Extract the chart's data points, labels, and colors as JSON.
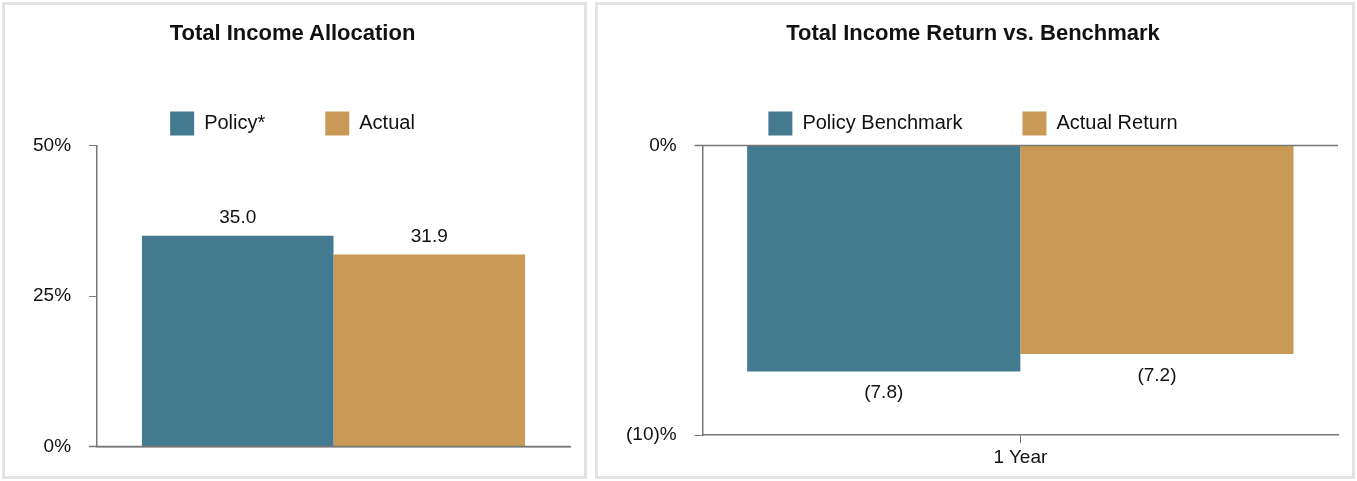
{
  "chart_data": [
    {
      "type": "bar",
      "title": "Total Income Allocation",
      "categories": [
        null
      ],
      "series": [
        {
          "name": "Policy*",
          "color": "#437a8f",
          "values": [
            35.0
          ],
          "value_labels": [
            "35.0"
          ]
        },
        {
          "name": "Actual",
          "color": "#c89a55",
          "values": [
            31.9
          ],
          "value_labels": [
            "31.9"
          ]
        }
      ],
      "ylim": [
        0,
        50
      ],
      "yticks": [
        {
          "value": 0,
          "label": "0%"
        },
        {
          "value": 25,
          "label": "25%"
        },
        {
          "value": 50,
          "label": "50%"
        }
      ],
      "grid": false,
      "legend": "top"
    },
    {
      "type": "bar",
      "title": "Total Income Return vs. Benchmark",
      "categories": [
        "1 Year"
      ],
      "series": [
        {
          "name": "Policy Benchmark",
          "color": "#437a8f",
          "values": [
            -7.8
          ],
          "value_labels": [
            "(7.8)"
          ]
        },
        {
          "name": "Actual Return",
          "color": "#c89a55",
          "values": [
            -7.2
          ],
          "value_labels": [
            "(7.2)"
          ]
        }
      ],
      "ylim": [
        -10,
        0
      ],
      "yticks": [
        {
          "value": -10,
          "label": "(10)%"
        },
        {
          "value": 0,
          "label": "0%"
        }
      ],
      "grid": false,
      "legend": "top"
    }
  ]
}
